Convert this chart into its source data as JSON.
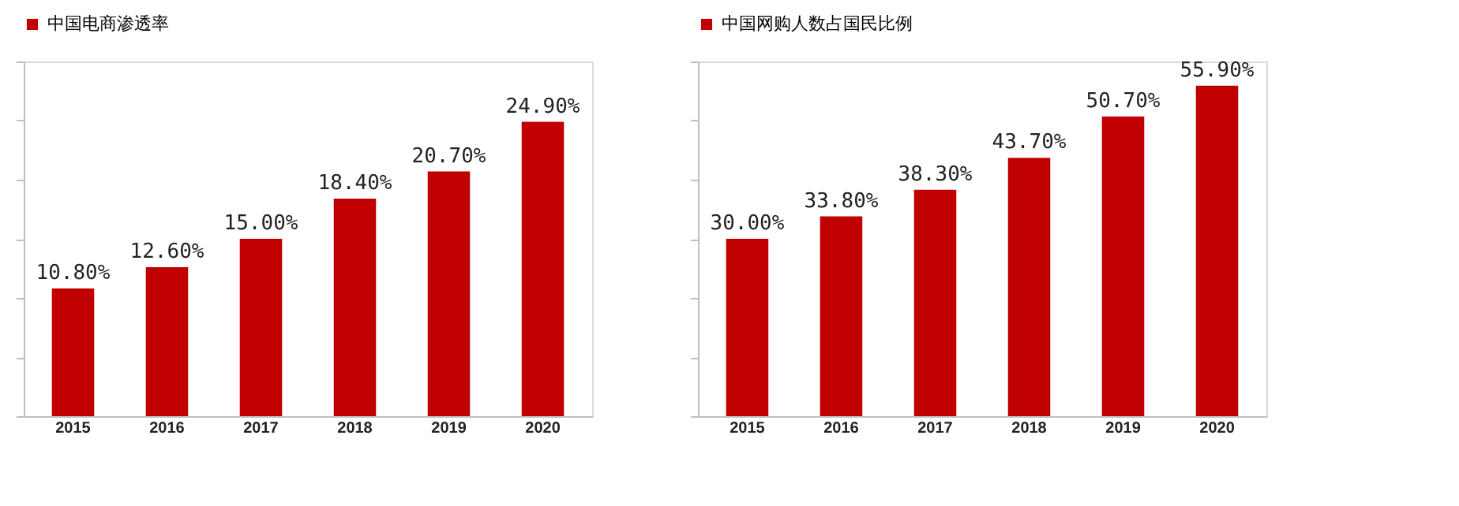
{
  "chart_data": [
    {
      "type": "bar",
      "categories": [
        "2015",
        "2016",
        "2017",
        "2018",
        "2019",
        "2020"
      ],
      "series": [
        {
          "name": "中国电商渗透率",
          "color": "#c00000",
          "values": [
            10.8,
            12.6,
            15.0,
            18.4,
            20.7,
            24.9
          ],
          "value_labels": [
            "10.80%",
            "12.60%",
            "15.00%",
            "18.40%",
            "20.70%",
            "24.90%"
          ]
        }
      ],
      "ylim": [
        0,
        30
      ],
      "yticks": [
        {
          "value": 0,
          "label": null
        },
        {
          "value": 5,
          "label": null
        },
        {
          "value": 10,
          "label": null
        },
        {
          "value": 15,
          "label": null
        },
        {
          "value": 20,
          "label": null
        },
        {
          "value": 25,
          "label": null
        },
        {
          "value": 30,
          "label": null
        }
      ],
      "tick_labels": "x",
      "legend": "top",
      "grid": false
    },
    {
      "type": "bar",
      "categories": [
        "2015",
        "2016",
        "2017",
        "2018",
        "2019",
        "2020"
      ],
      "series": [
        {
          "name": "中国网购人数占国民比例",
          "color": "#c00000",
          "values": [
            30.0,
            33.8,
            38.3,
            43.7,
            50.7,
            55.9
          ],
          "value_labels": [
            "30.00%",
            "33.80%",
            "38.30%",
            "43.70%",
            "50.70%",
            "55.90%"
          ]
        }
      ],
      "ylim": [
        0,
        60
      ],
      "yticks": [
        {
          "value": 0,
          "label": null
        },
        {
          "value": 10,
          "label": null
        },
        {
          "value": 20,
          "label": null
        },
        {
          "value": 30,
          "label": null
        },
        {
          "value": 40,
          "label": null
        },
        {
          "value": 50,
          "label": null
        },
        {
          "value": 60,
          "label": null
        }
      ],
      "tick_labels": "x",
      "legend": "top",
      "grid": false
    }
  ]
}
